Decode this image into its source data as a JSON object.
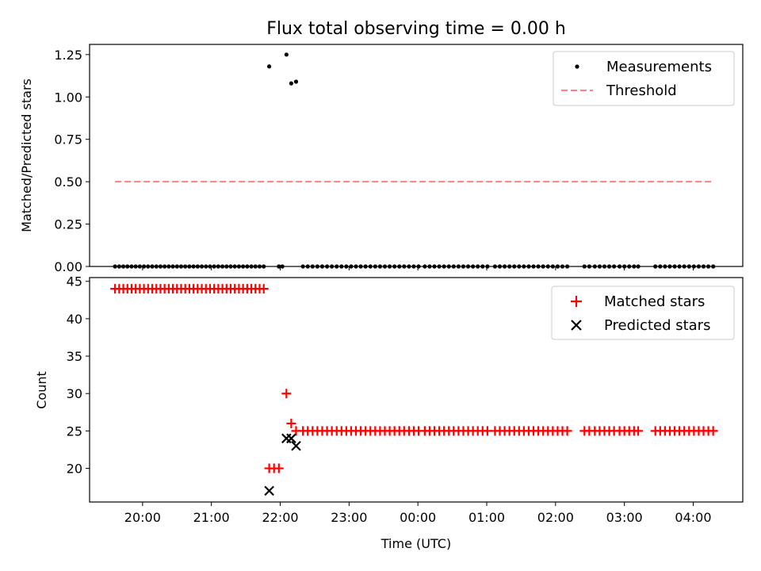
{
  "figure": {
    "title": "Flux total observing time = 0.00 h"
  },
  "chart_data": [
    {
      "type": "scatter",
      "panel": "top",
      "ylabel": "Matched/Predicted stars",
      "xlabel": "",
      "ylim": [
        0,
        1.31
      ],
      "yticks": [
        0.0,
        0.25,
        0.5,
        0.75,
        1.0,
        1.25
      ],
      "ytick_labels": [
        "0.00",
        "0.25",
        "0.50",
        "0.75",
        "1.00",
        "1.25"
      ],
      "grid": false,
      "legend_placement": "top-right",
      "series": [
        {
          "name": "Measurements",
          "marker": "dot",
          "color": "#000000",
          "x_hours": [
            19.6,
            19.66,
            19.72,
            19.78,
            19.84,
            19.9,
            19.96,
            20.02,
            20.08,
            20.14,
            20.2,
            20.26,
            20.32,
            20.38,
            20.44,
            20.5,
            20.56,
            20.62,
            20.68,
            20.74,
            20.8,
            20.86,
            20.92,
            20.98,
            21.04,
            21.1,
            21.16,
            21.22,
            21.28,
            21.34,
            21.4,
            21.46,
            21.52,
            21.58,
            21.64,
            21.7,
            21.76,
            21.84,
            21.98,
            22.03,
            22.09,
            22.16,
            22.23,
            22.33,
            22.4,
            22.47,
            22.54,
            22.61,
            22.68,
            22.75,
            22.82,
            22.89,
            22.96,
            23.03,
            23.1,
            23.17,
            23.24,
            23.31,
            23.38,
            23.45,
            23.52,
            23.59,
            23.66,
            23.73,
            23.8,
            23.87,
            23.94,
            24.01,
            24.1,
            24.17,
            24.24,
            24.31,
            24.38,
            24.45,
            24.52,
            24.59,
            24.66,
            24.73,
            24.8,
            24.87,
            24.94,
            25.01,
            25.12,
            25.19,
            25.26,
            25.33,
            25.4,
            25.47,
            25.54,
            25.61,
            25.68,
            25.75,
            25.82,
            25.89,
            25.96,
            26.03,
            26.1,
            26.17,
            26.42,
            26.49,
            26.57,
            26.64,
            26.71,
            26.78,
            26.85,
            26.93,
            27.0,
            27.07,
            27.14,
            27.2,
            27.45,
            27.52,
            27.59,
            27.66,
            27.73,
            27.8,
            27.87,
            27.94,
            28.01,
            28.08,
            28.15,
            28.22,
            28.29
          ],
          "y": [
            0,
            0,
            0,
            0,
            0,
            0,
            0,
            0,
            0,
            0,
            0,
            0,
            0,
            0,
            0,
            0,
            0,
            0,
            0,
            0,
            0,
            0,
            0,
            0,
            0,
            0,
            0,
            0,
            0,
            0,
            0,
            0,
            0,
            0,
            0,
            0,
            0,
            1.18,
            0,
            0,
            1.25,
            1.08,
            1.09,
            0,
            0,
            0,
            0,
            0,
            0,
            0,
            0,
            0,
            0,
            0,
            0,
            0,
            0,
            0,
            0,
            0,
            0,
            0,
            0,
            0,
            0,
            0,
            0,
            0,
            0,
            0,
            0,
            0,
            0,
            0,
            0,
            0,
            0,
            0,
            0,
            0,
            0,
            0,
            0,
            0,
            0,
            0,
            0,
            0,
            0,
            0,
            0,
            0,
            0,
            0,
            0,
            0,
            0,
            0,
            0,
            0,
            0,
            0,
            0,
            0,
            0,
            0,
            0,
            0,
            0,
            0,
            0,
            0,
            0,
            0,
            0,
            0,
            0,
            0,
            0,
            0,
            0,
            0,
            0
          ]
        },
        {
          "name": "Threshold",
          "style": "dashed-line",
          "color": "#ff8080",
          "x_hours": [
            19.6,
            28.29
          ],
          "y": [
            0.5,
            0.5
          ]
        }
      ]
    },
    {
      "type": "scatter",
      "panel": "bottom",
      "ylabel": "Count",
      "xlabel": "Time (UTC)",
      "ylim": [
        15.5,
        45.5
      ],
      "yticks": [
        20,
        25,
        30,
        35,
        40,
        45
      ],
      "ytick_labels": [
        "20",
        "25",
        "30",
        "35",
        "40",
        "45"
      ],
      "xlim_hours": [
        19.23,
        28.72
      ],
      "xticks_hours": [
        20,
        21,
        22,
        23,
        24,
        25,
        26,
        27,
        28
      ],
      "xtick_labels": [
        "20:00",
        "21:00",
        "22:00",
        "23:00",
        "00:00",
        "01:00",
        "02:00",
        "03:00",
        "04:00"
      ],
      "grid": false,
      "legend_placement": "top-right",
      "series": [
        {
          "name": "Matched stars",
          "marker": "plus",
          "color": "#ff0000",
          "x_hours": [
            19.6,
            19.66,
            19.72,
            19.78,
            19.84,
            19.9,
            19.96,
            20.02,
            20.08,
            20.14,
            20.2,
            20.26,
            20.32,
            20.38,
            20.44,
            20.5,
            20.56,
            20.62,
            20.68,
            20.74,
            20.8,
            20.86,
            20.92,
            20.98,
            21.04,
            21.1,
            21.16,
            21.22,
            21.28,
            21.34,
            21.4,
            21.46,
            21.52,
            21.58,
            21.64,
            21.7,
            21.76,
            21.84,
            21.91,
            21.98,
            22.09,
            22.16,
            22.23,
            22.33,
            22.4,
            22.47,
            22.54,
            22.61,
            22.68,
            22.75,
            22.82,
            22.89,
            22.96,
            23.03,
            23.1,
            23.17,
            23.24,
            23.31,
            23.38,
            23.45,
            23.52,
            23.59,
            23.66,
            23.73,
            23.8,
            23.87,
            23.94,
            24.01,
            24.1,
            24.17,
            24.24,
            24.31,
            24.38,
            24.45,
            24.52,
            24.59,
            24.66,
            24.73,
            24.8,
            24.87,
            24.94,
            25.01,
            25.12,
            25.19,
            25.26,
            25.33,
            25.4,
            25.47,
            25.54,
            25.61,
            25.68,
            25.75,
            25.82,
            25.89,
            25.96,
            26.03,
            26.1,
            26.17,
            26.42,
            26.49,
            26.57,
            26.64,
            26.71,
            26.78,
            26.85,
            26.93,
            27.0,
            27.07,
            27.14,
            27.2,
            27.45,
            27.52,
            27.59,
            27.66,
            27.73,
            27.8,
            27.87,
            27.94,
            28.01,
            28.08,
            28.15,
            28.22,
            28.29
          ],
          "y": [
            44,
            44,
            44,
            44,
            44,
            44,
            44,
            44,
            44,
            44,
            44,
            44,
            44,
            44,
            44,
            44,
            44,
            44,
            44,
            44,
            44,
            44,
            44,
            44,
            44,
            44,
            44,
            44,
            44,
            44,
            44,
            44,
            44,
            44,
            44,
            44,
            44,
            20,
            20,
            20,
            30,
            26,
            25,
            25,
            25,
            25,
            25,
            25,
            25,
            25,
            25,
            25,
            25,
            25,
            25,
            25,
            25,
            25,
            25,
            25,
            25,
            25,
            25,
            25,
            25,
            25,
            25,
            25,
            25,
            25,
            25,
            25,
            25,
            25,
            25,
            25,
            25,
            25,
            25,
            25,
            25,
            25,
            25,
            25,
            25,
            25,
            25,
            25,
            25,
            25,
            25,
            25,
            25,
            25,
            25,
            25,
            25,
            25,
            25,
            25,
            25,
            25,
            25,
            25,
            25,
            25,
            25,
            25,
            25,
            25,
            25,
            25,
            25,
            25,
            25,
            25,
            25,
            25,
            25,
            25,
            25,
            25,
            25
          ]
        },
        {
          "name": "Predicted stars",
          "marker": "x",
          "color": "#000000",
          "x_hours": [
            21.84,
            22.09,
            22.16,
            22.23
          ],
          "y": [
            17,
            24,
            24,
            23
          ]
        }
      ]
    }
  ]
}
